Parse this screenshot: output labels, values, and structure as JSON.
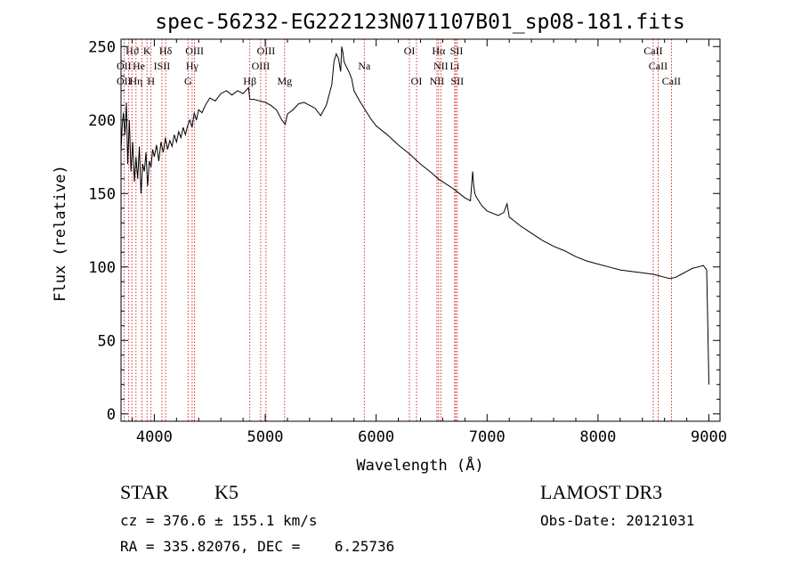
{
  "chart_data": {
    "type": "line",
    "title": "spec-56232-EG222123N071107B01_sp08-181.fits",
    "xlabel": "Wavelength (Å)",
    "ylabel": "Flux (relative)",
    "xlim": [
      3700,
      9100
    ],
    "ylim": [
      -5,
      255
    ],
    "x_ticks": [
      4000,
      5000,
      6000,
      7000,
      8000,
      9000
    ],
    "y_ticks": [
      0,
      50,
      100,
      150,
      200,
      250
    ],
    "grid": false,
    "colors": {
      "spectrum": "#000000",
      "line_marker": "#cc0000",
      "axes": "#000000"
    },
    "series": [
      {
        "name": "flux",
        "x": [
          3700,
          3710,
          3722,
          3735,
          3748,
          3760,
          3775,
          3790,
          3805,
          3820,
          3835,
          3850,
          3865,
          3880,
          3895,
          3910,
          3925,
          3940,
          3955,
          3970,
          3985,
          4000,
          4020,
          4040,
          4060,
          4080,
          4100,
          4120,
          4140,
          4160,
          4180,
          4200,
          4220,
          4240,
          4260,
          4280,
          4300,
          4320,
          4340,
          4360,
          4380,
          4400,
          4430,
          4460,
          4500,
          4550,
          4600,
          4650,
          4700,
          4750,
          4800,
          4850,
          4860,
          4900,
          4950,
          5000,
          5050,
          5100,
          5150,
          5180,
          5200,
          5250,
          5300,
          5350,
          5400,
          5450,
          5500,
          5550,
          5600,
          5620,
          5640,
          5660,
          5680,
          5690,
          5700,
          5710,
          5720,
          5740,
          5760,
          5780,
          5800,
          5850,
          5900,
          5950,
          6000,
          6100,
          6200,
          6300,
          6400,
          6500,
          6560,
          6600,
          6700,
          6800,
          6850,
          6870,
          6880,
          6890,
          6900,
          6950,
          7000,
          7100,
          7150,
          7180,
          7200,
          7250,
          7300,
          7400,
          7500,
          7600,
          7700,
          7800,
          7900,
          8000,
          8100,
          8200,
          8300,
          8400,
          8500,
          8550,
          8600,
          8650,
          8700,
          8750,
          8800,
          8850,
          8900,
          8950,
          8980,
          8990,
          9000
        ],
        "values": [
          178,
          195,
          205,
          190,
          212,
          170,
          200,
          165,
          185,
          158,
          175,
          160,
          182,
          150,
          170,
          165,
          178,
          155,
          172,
          168,
          180,
          175,
          183,
          172,
          185,
          178,
          188,
          180,
          186,
          182,
          190,
          185,
          192,
          188,
          195,
          190,
          196,
          200,
          195,
          205,
          200,
          207,
          205,
          210,
          215,
          213,
          218,
          220,
          217,
          220,
          218,
          222,
          214,
          214,
          213,
          212,
          210,
          207,
          200,
          197,
          204,
          207,
          211,
          212,
          210,
          208,
          203,
          210,
          224,
          240,
          245,
          242,
          233,
          250,
          246,
          240,
          238,
          235,
          232,
          228,
          220,
          213,
          207,
          201,
          196,
          190,
          183,
          177,
          170,
          164,
          160,
          158,
          153,
          147,
          145,
          165,
          155,
          150,
          148,
          142,
          138,
          135,
          137,
          143,
          134,
          131,
          128,
          123,
          118,
          114,
          111,
          107,
          104,
          102,
          100,
          98,
          97,
          96,
          95,
          94,
          93,
          92,
          93,
          95,
          97,
          99,
          100,
          101,
          98,
          60,
          20
        ]
      }
    ],
    "line_markers": [
      3727,
      3770,
      3798,
      3835,
      3889,
      3934,
      3970,
      4069,
      4102,
      4304,
      4341,
      4363,
      4861,
      4959,
      5007,
      5175,
      5893,
      6300,
      6364,
      6548,
      6563,
      6583,
      6708,
      6717,
      6731,
      8498,
      8542,
      8662
    ],
    "line_labels": {
      "row1": [
        {
          "text": "Hϑ",
          "x": 3800
        },
        {
          "text": "K",
          "x": 3934
        },
        {
          "text": "Hδ",
          "x": 4102
        },
        {
          "text": "OIII",
          "x": 4363
        },
        {
          "text": "OIII",
          "x": 5007
        },
        {
          "text": "OI",
          "x": 6300
        },
        {
          "text": "Hα",
          "x": 6563
        },
        {
          "text": "SII",
          "x": 6725
        },
        {
          "text": "CaII",
          "x": 8498
        }
      ],
      "row2": [
        {
          "text": "OII",
          "x": 3727
        },
        {
          "text": "He",
          "x": 3860
        },
        {
          "text": "ISII",
          "x": 4069
        },
        {
          "text": "Hγ",
          "x": 4341
        },
        {
          "text": "OIII",
          "x": 4959
        },
        {
          "text": "Na",
          "x": 5893
        },
        {
          "text": "NII",
          "x": 6583
        },
        {
          "text": "Li",
          "x": 6708
        },
        {
          "text": "CaII",
          "x": 8542
        }
      ],
      "row3": [
        {
          "text": "OII",
          "x": 3727
        },
        {
          "text": "Hη",
          "x": 3835
        },
        {
          "text": "H",
          "x": 3970
        },
        {
          "text": "G",
          "x": 4304
        },
        {
          "text": "Hβ",
          "x": 4861
        },
        {
          "text": "Mg",
          "x": 5175
        },
        {
          "text": "OI",
          "x": 6364
        },
        {
          "text": "NII",
          "x": 6548
        },
        {
          "text": "SII",
          "x": 6731
        },
        {
          "text": "CaII",
          "x": 8662
        }
      ]
    }
  },
  "info": {
    "class_label": "STAR",
    "subclass": "K5",
    "cz": "cz = 376.6 ± 155.1 km/s",
    "radec": "RA = 335.82076, DEC =    6.25736",
    "survey": "LAMOST DR3",
    "obs_date": "Obs-Date: 20121031"
  }
}
